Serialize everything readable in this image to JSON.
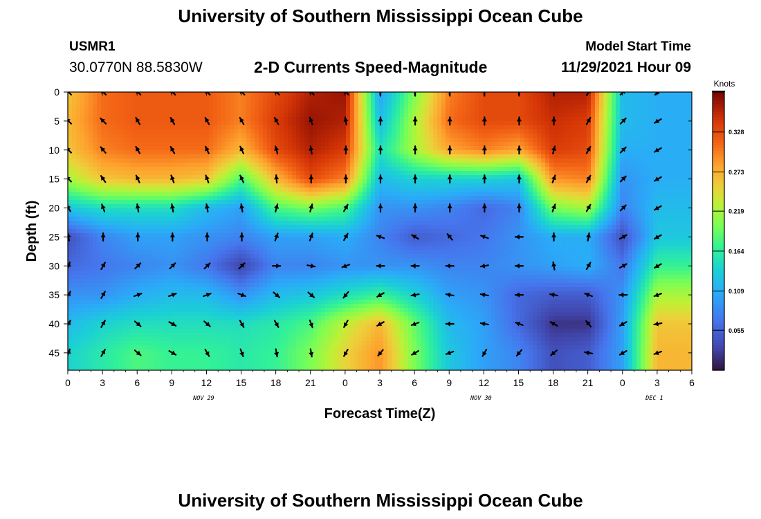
{
  "header": {
    "title": "University of Southern Mississippi Ocean Cube",
    "station_id": "USMR1",
    "station_coords": "30.0770N  88.5830W",
    "chart_title": "2-D Currents Speed-Magnitude",
    "model_start_label": "Model Start Time",
    "model_start_value": "11/29/2021 Hour 09"
  },
  "footer": {
    "title": "University of Southern Mississippi Ocean Cube"
  },
  "chart_data": {
    "type": "heatmap",
    "title": "2-D Currents Speed-Magnitude",
    "xlabel": "Forecast Time(Z)",
    "ylabel": "Depth (ft)",
    "x_hours_since_start": [
      0,
      3,
      6,
      9,
      12,
      15,
      18,
      21,
      24,
      27,
      30,
      33,
      36,
      39,
      42,
      45,
      48,
      51,
      54
    ],
    "x_tick_labels": [
      "0",
      "3",
      "6",
      "9",
      "12",
      "15",
      "18",
      "21",
      "0",
      "3",
      "6",
      "9",
      "12",
      "15",
      "18",
      "21",
      "0",
      "3",
      "6"
    ],
    "xlim": [
      0,
      54
    ],
    "date_labels": [
      {
        "label": "NOV 29",
        "hour": 12
      },
      {
        "label": "NOV 30",
        "hour": 36
      },
      {
        "label": "DEC 1",
        "hour": 51
      }
    ],
    "y_depth_ft": [
      0,
      5,
      10,
      15,
      20,
      25,
      30,
      35,
      40,
      45
    ],
    "y_tick_labels": [
      "0",
      "5",
      "10",
      "15",
      "20",
      "25",
      "30",
      "35",
      "40",
      "45"
    ],
    "ylim": [
      0,
      48
    ],
    "colorbar": {
      "title": "Knots",
      "min": 0.0,
      "max": 0.383,
      "tick_values": [
        0.055,
        0.109,
        0.164,
        0.219,
        0.273,
        0.328
      ],
      "tick_labels": [
        "0.055",
        "0.109",
        "0.164",
        "0.219",
        "0.273",
        "0.328"
      ]
    },
    "arrow_columns_hours": [
      0,
      3,
      6,
      9,
      12,
      15,
      18,
      21,
      24,
      27,
      30,
      33,
      36,
      39,
      42,
      45,
      48,
      51
    ],
    "arrow_rows_depth_ft": [
      0,
      5,
      10,
      15,
      20,
      25,
      30,
      35,
      40,
      45
    ],
    "speed_knots": [
      [
        0.26,
        0.31,
        0.32,
        0.32,
        0.32,
        0.3,
        0.33,
        0.36,
        0.37,
        0.1,
        0.2,
        0.3,
        0.33,
        0.33,
        0.36,
        0.36,
        0.12,
        0.11
      ],
      [
        0.27,
        0.31,
        0.32,
        0.32,
        0.32,
        0.3,
        0.34,
        0.37,
        0.36,
        0.12,
        0.22,
        0.31,
        0.33,
        0.33,
        0.35,
        0.34,
        0.12,
        0.11
      ],
      [
        0.26,
        0.3,
        0.31,
        0.31,
        0.31,
        0.27,
        0.33,
        0.36,
        0.34,
        0.15,
        0.22,
        0.28,
        0.3,
        0.28,
        0.34,
        0.33,
        0.11,
        0.11
      ],
      [
        0.22,
        0.26,
        0.27,
        0.27,
        0.26,
        0.18,
        0.27,
        0.33,
        0.3,
        0.12,
        0.14,
        0.14,
        0.14,
        0.13,
        0.29,
        0.3,
        0.09,
        0.11
      ],
      [
        0.13,
        0.15,
        0.15,
        0.15,
        0.12,
        0.1,
        0.18,
        0.2,
        0.18,
        0.09,
        0.09,
        0.08,
        0.06,
        0.08,
        0.2,
        0.22,
        0.08,
        0.12
      ],
      [
        0.04,
        0.08,
        0.1,
        0.1,
        0.09,
        0.08,
        0.1,
        0.1,
        0.11,
        0.08,
        0.05,
        0.06,
        0.07,
        0.09,
        0.11,
        0.11,
        0.04,
        0.13
      ],
      [
        0.06,
        0.07,
        0.08,
        0.09,
        0.07,
        0.03,
        0.08,
        0.08,
        0.09,
        0.09,
        0.09,
        0.08,
        0.08,
        0.09,
        0.1,
        0.11,
        0.07,
        0.17
      ],
      [
        0.09,
        0.09,
        0.11,
        0.12,
        0.12,
        0.09,
        0.12,
        0.13,
        0.15,
        0.17,
        0.14,
        0.1,
        0.09,
        0.06,
        0.05,
        0.05,
        0.09,
        0.22
      ],
      [
        0.12,
        0.14,
        0.15,
        0.15,
        0.15,
        0.15,
        0.16,
        0.18,
        0.23,
        0.27,
        0.19,
        0.12,
        0.1,
        0.06,
        0.02,
        0.02,
        0.1,
        0.26
      ],
      [
        0.14,
        0.16,
        0.18,
        0.17,
        0.17,
        0.16,
        0.17,
        0.2,
        0.25,
        0.29,
        0.2,
        0.13,
        0.1,
        0.08,
        0.04,
        0.05,
        0.1,
        0.27
      ]
    ],
    "direction_deg": [
      [
        225,
        225,
        225,
        225,
        225,
        225,
        225,
        225,
        225,
        270,
        270,
        270,
        270,
        270,
        270,
        300,
        315,
        135
      ],
      [
        225,
        225,
        240,
        240,
        240,
        240,
        240,
        250,
        260,
        270,
        270,
        270,
        270,
        270,
        270,
        300,
        315,
        150
      ],
      [
        225,
        230,
        240,
        240,
        245,
        245,
        255,
        260,
        270,
        270,
        270,
        270,
        270,
        270,
        285,
        300,
        315,
        150
      ],
      [
        225,
        235,
        245,
        250,
        250,
        245,
        265,
        270,
        270,
        270,
        270,
        270,
        270,
        270,
        290,
        300,
        315,
        150
      ],
      [
        240,
        250,
        260,
        260,
        260,
        260,
        285,
        285,
        300,
        270,
        270,
        270,
        270,
        270,
        290,
        300,
        315,
        150
      ],
      [
        260,
        270,
        270,
        270,
        270,
        270,
        290,
        290,
        300,
        200,
        210,
        230,
        200,
        180,
        270,
        280,
        330,
        150
      ],
      [
        290,
        300,
        315,
        315,
        315,
        315,
        0,
        10,
        160,
        180,
        180,
        180,
        170,
        180,
        260,
        300,
        330,
        150
      ],
      [
        300,
        300,
        340,
        340,
        340,
        20,
        40,
        40,
        130,
        150,
        170,
        190,
        190,
        180,
        190,
        200,
        180,
        160
      ],
      [
        300,
        300,
        40,
        30,
        40,
        60,
        60,
        70,
        120,
        150,
        160,
        180,
        190,
        200,
        210,
        230,
        150,
        170
      ],
      [
        290,
        300,
        40,
        30,
        60,
        70,
        80,
        80,
        120,
        130,
        150,
        160,
        120,
        130,
        140,
        190,
        150,
        160
      ]
    ]
  }
}
